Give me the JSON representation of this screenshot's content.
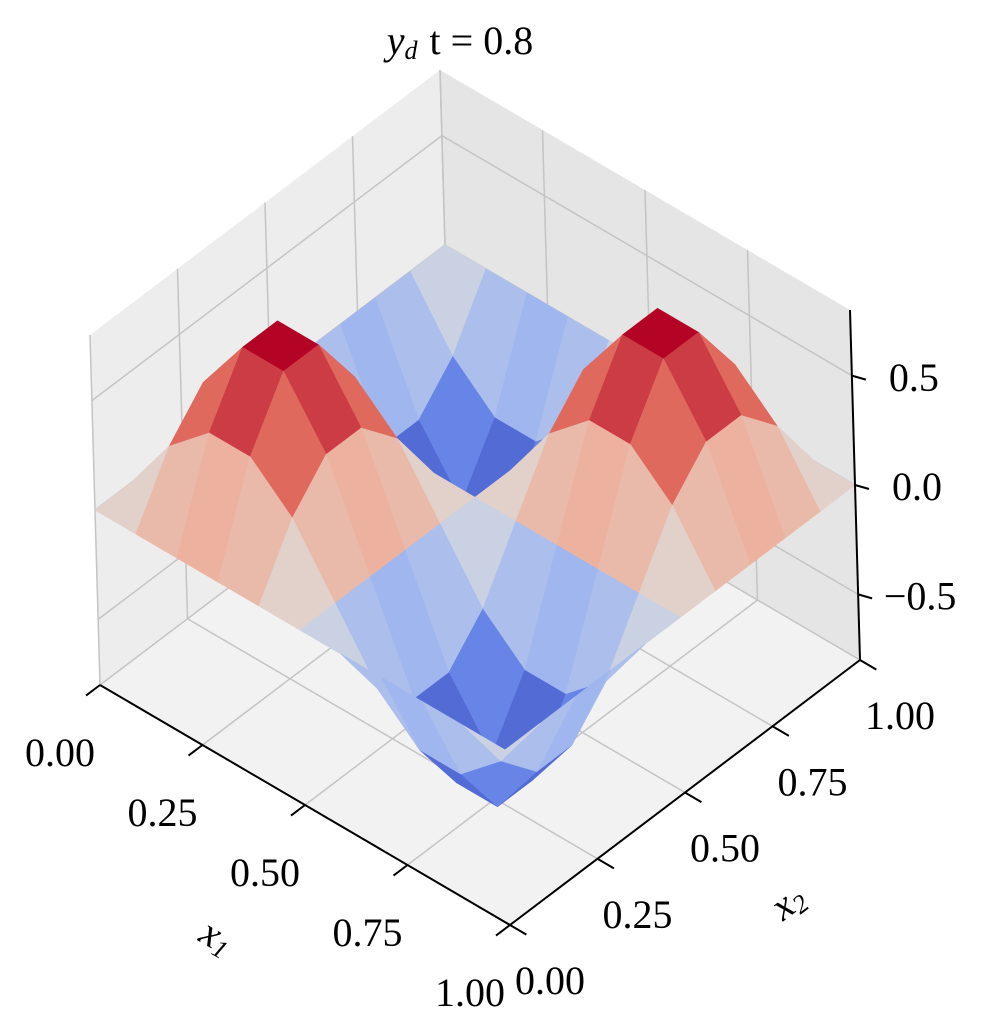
{
  "chart_data": {
    "type": "surface",
    "title": {
      "variable": "y",
      "subscript": "d",
      "text": "t = 0.8"
    },
    "xlabel": {
      "variable": "x",
      "subscript": "1"
    },
    "ylabel": {
      "variable": "x",
      "subscript": "2"
    },
    "colormap": "coolwarm",
    "x1": [
      0,
      0.1,
      0.2,
      0.3,
      0.4,
      0.5,
      0.6,
      0.7,
      0.8,
      0.9,
      1
    ],
    "x2": [
      0,
      0.1,
      0.2,
      0.3,
      0.4,
      0.5,
      0.6,
      0.7,
      0.8,
      0.9,
      1
    ],
    "z": [
      [
        0,
        0,
        0,
        0,
        0,
        0,
        0,
        0,
        0,
        0,
        0
      ],
      [
        0,
        0.28,
        0.45,
        0.45,
        0.28,
        0,
        -0.28,
        -0.45,
        -0.45,
        -0.28,
        0
      ],
      [
        0,
        0.45,
        0.72,
        0.72,
        0.45,
        0,
        -0.45,
        -0.72,
        -0.72,
        -0.45,
        0
      ],
      [
        0,
        0.45,
        0.72,
        0.72,
        0.45,
        0,
        -0.45,
        -0.72,
        -0.72,
        -0.45,
        0
      ],
      [
        0,
        0.28,
        0.45,
        0.45,
        0.28,
        0,
        -0.28,
        -0.45,
        -0.45,
        -0.28,
        0
      ],
      [
        0,
        0,
        0,
        0,
        0,
        0,
        0,
        0,
        0,
        0,
        0
      ],
      [
        0,
        -0.28,
        -0.45,
        -0.45,
        -0.28,
        0,
        0.28,
        0.45,
        0.45,
        0.28,
        0
      ],
      [
        0,
        -0.45,
        -0.72,
        -0.72,
        -0.45,
        0,
        0.45,
        0.72,
        0.72,
        0.45,
        0
      ],
      [
        0,
        -0.45,
        -0.72,
        -0.72,
        -0.45,
        0,
        0.45,
        0.72,
        0.72,
        0.45,
        0
      ],
      [
        0,
        -0.28,
        -0.45,
        -0.45,
        -0.28,
        0,
        0.28,
        0.45,
        0.45,
        0.28,
        0
      ],
      [
        0,
        0,
        0,
        0,
        0,
        0,
        0,
        0,
        0,
        0,
        0
      ]
    ],
    "xlim": [
      0,
      1
    ],
    "ylim": [
      0,
      1
    ],
    "zlim": [
      -0.8,
      0.8
    ],
    "xticks": [
      {
        "value": 0,
        "label": "0.00"
      },
      {
        "value": 0.25,
        "label": "0.25"
      },
      {
        "value": 0.5,
        "label": "0.50"
      },
      {
        "value": 0.75,
        "label": "0.75"
      },
      {
        "value": 1,
        "label": "1.00"
      }
    ],
    "yticks": [
      {
        "value": 0,
        "label": "0.00"
      },
      {
        "value": 0.25,
        "label": "0.25"
      },
      {
        "value": 0.5,
        "label": "0.50"
      },
      {
        "value": 0.75,
        "label": "0.75"
      },
      {
        "value": 1,
        "label": "1.00"
      }
    ],
    "zticks": [
      {
        "value": -0.5,
        "label": "−0.5"
      },
      {
        "value": 0,
        "label": "0.0"
      },
      {
        "value": 0.5,
        "label": "0.5"
      }
    ],
    "grid": true
  }
}
